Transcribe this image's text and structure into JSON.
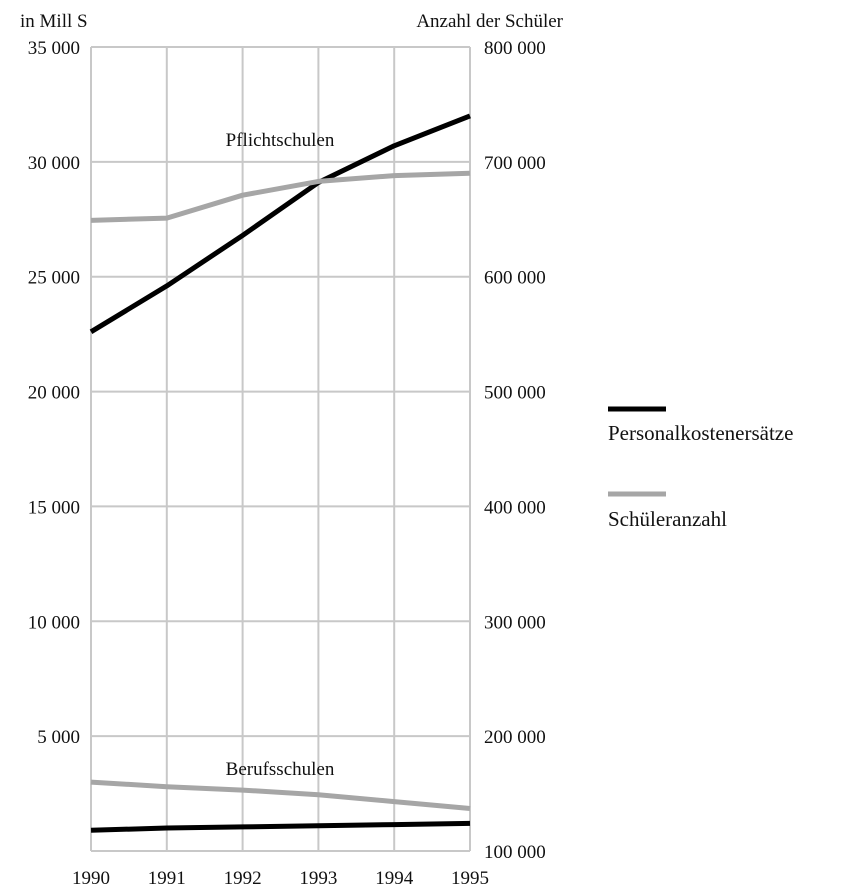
{
  "chart_data": {
    "type": "line",
    "x": [
      1990,
      1991,
      1992,
      1993,
      1994,
      1995
    ],
    "x_tick_labels": [
      "1990",
      "1991",
      "1992",
      "1993",
      "1994",
      "1995"
    ],
    "left_axis": {
      "label": "in Mill S",
      "range": [
        0,
        35000
      ],
      "ticks": [
        5000,
        10000,
        15000,
        20000,
        25000,
        30000,
        35000
      ],
      "tick_labels": [
        "5 000",
        "10 000",
        "15 000",
        "20 000",
        "25 000",
        "30 000",
        "35 000"
      ]
    },
    "right_axis": {
      "label": "Anzahl der Schüler",
      "range": [
        100000,
        800000
      ],
      "ticks": [
        100000,
        200000,
        300000,
        400000,
        500000,
        600000,
        700000,
        800000
      ],
      "tick_labels": [
        "100 000",
        "200 000",
        "300 000",
        "400 000",
        "500 000",
        "600 000",
        "700 000",
        "800 000"
      ]
    },
    "series": [
      {
        "group": "Pflichtschulen",
        "name": "Personalkostenersätze",
        "axis": "left",
        "color": "#000000",
        "values": [
          22600,
          24600,
          26800,
          29100,
          30700,
          32000
        ]
      },
      {
        "group": "Pflichtschulen",
        "name": "Schüleranzahl",
        "axis": "right",
        "color": "#a6a6a6",
        "values": [
          649000,
          651000,
          671000,
          683000,
          688000,
          690000
        ]
      },
      {
        "group": "Berufsschulen",
        "name": "Personalkostenersätze",
        "axis": "left",
        "color": "#000000",
        "values": [
          900,
          1000,
          1050,
          1100,
          1150,
          1200
        ]
      },
      {
        "group": "Berufsschulen",
        "name": "Schüleranzahl",
        "axis": "right",
        "color": "#a6a6a6",
        "values": [
          160000,
          156000,
          153000,
          149000,
          143000,
          137000
        ]
      }
    ],
    "annotations": [
      {
        "text": "Pflichtschulen"
      },
      {
        "text": "Berufsschulen"
      }
    ],
    "legend": {
      "placement": "right",
      "items": [
        {
          "label": "Personalkostenersätze",
          "color": "#000000"
        },
        {
          "label": "Schüleranzahl",
          "color": "#a6a6a6"
        }
      ]
    },
    "grid": true
  }
}
